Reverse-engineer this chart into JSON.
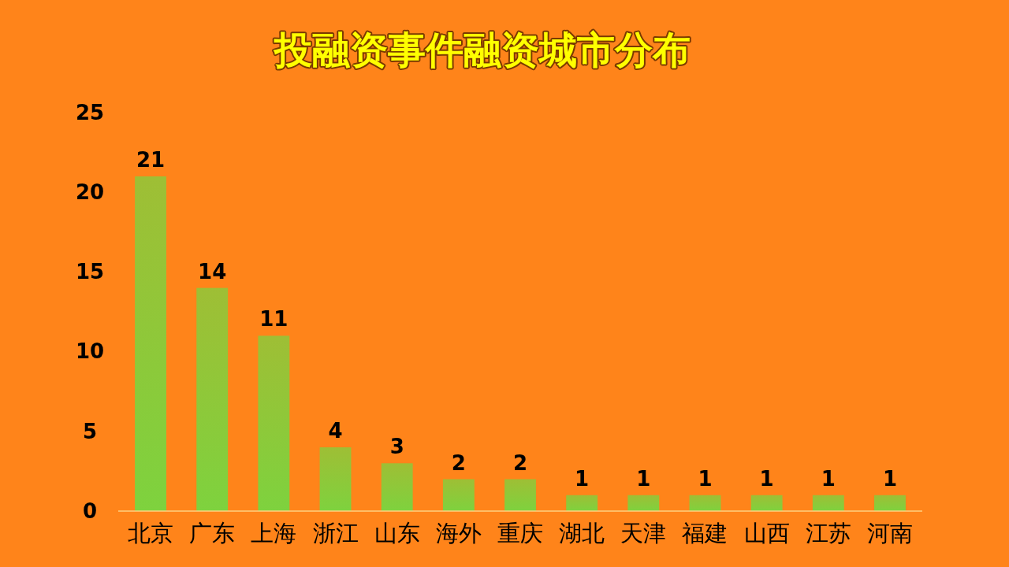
{
  "chart_data": {
    "type": "bar",
    "title": "投融资事件融资城市分布",
    "categories": [
      "北京",
      "广东",
      "上海",
      "浙江",
      "山东",
      "海外",
      "重庆",
      "湖北",
      "天津",
      "福建",
      "山西",
      "江苏",
      "河南"
    ],
    "values": [
      21,
      14,
      11,
      4,
      3,
      2,
      2,
      1,
      1,
      1,
      1,
      1,
      1
    ],
    "color": "#7ed23e",
    "ylim": [
      0,
      25
    ],
    "yticks": [
      0,
      5,
      10,
      15,
      20,
      25
    ],
    "grid": false,
    "data_labels": true
  }
}
